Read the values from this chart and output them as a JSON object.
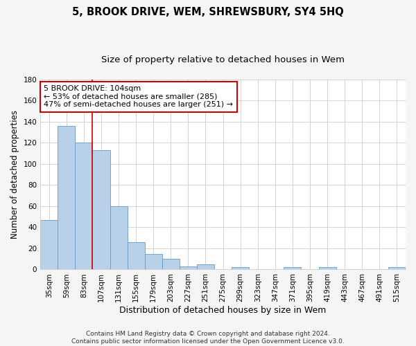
{
  "title": "5, BROOK DRIVE, WEM, SHREWSBURY, SY4 5HQ",
  "subtitle": "Size of property relative to detached houses in Wem",
  "xlabel": "Distribution of detached houses by size in Wem",
  "ylabel": "Number of detached properties",
  "categories": [
    "35sqm",
    "59sqm",
    "83sqm",
    "107sqm",
    "131sqm",
    "155sqm",
    "179sqm",
    "203sqm",
    "227sqm",
    "251sqm",
    "275sqm",
    "299sqm",
    "323sqm",
    "347sqm",
    "371sqm",
    "395sqm",
    "419sqm",
    "443sqm",
    "467sqm",
    "491sqm",
    "515sqm"
  ],
  "values": [
    47,
    136,
    120,
    113,
    60,
    26,
    15,
    10,
    3,
    5,
    0,
    2,
    0,
    0,
    2,
    0,
    2,
    0,
    0,
    0,
    2
  ],
  "bar_color": "#b8d0e8",
  "bar_edge_color": "#6699cc",
  "vline_x": 2.5,
  "vline_color": "#cc0000",
  "annotation_text": "5 BROOK DRIVE: 104sqm\n← 53% of detached houses are smaller (285)\n47% of semi-detached houses are larger (251) →",
  "annotation_box_color": "#ffffff",
  "annotation_box_edge": "#cc0000",
  "ylim": [
    0,
    180
  ],
  "yticks": [
    0,
    20,
    40,
    60,
    80,
    100,
    120,
    140,
    160,
    180
  ],
  "figure_background": "#f5f5f5",
  "plot_background": "#ffffff",
  "grid_color": "#cccccc",
  "footer": "Contains HM Land Registry data © Crown copyright and database right 2024.\nContains public sector information licensed under the Open Government Licence v3.0.",
  "title_fontsize": 10.5,
  "subtitle_fontsize": 9.5,
  "xlabel_fontsize": 9,
  "ylabel_fontsize": 8.5,
  "tick_fontsize": 7.5,
  "annotation_fontsize": 8,
  "footer_fontsize": 6.5
}
